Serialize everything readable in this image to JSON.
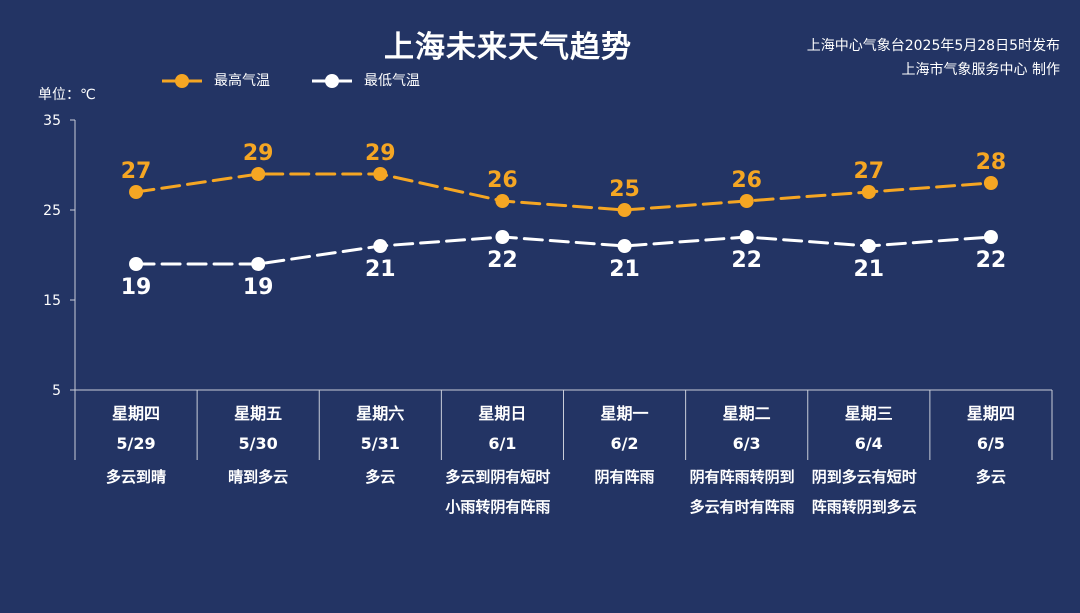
{
  "title": "上海未来天气趋势",
  "publisher": {
    "line1": "上海中心气象台2025年5月28日5时发布",
    "line2": "上海市气象服务中心 制作"
  },
  "unit_label": "单位：℃",
  "colors": {
    "background": "#233464",
    "high": "#F5A623",
    "low": "#FFFFFF",
    "axis": "#C8CCD8"
  },
  "legend": [
    {
      "label": "最高气温",
      "color": "#F5A623"
    },
    {
      "label": "最低气温",
      "color": "#FFFFFF"
    }
  ],
  "days": [
    {
      "weekday": "星期四",
      "date": "5/29",
      "condition": "多云到晴"
    },
    {
      "weekday": "星期五",
      "date": "5/30",
      "condition": "晴到多云"
    },
    {
      "weekday": "星期六",
      "date": "5/31",
      "condition": "多云"
    },
    {
      "weekday": "星期日",
      "date": "6/1",
      "condition": "多云到阴有短时小雨转阴有阵雨"
    },
    {
      "weekday": "星期一",
      "date": "6/2",
      "condition": "阴有阵雨"
    },
    {
      "weekday": "星期二",
      "date": "6/3",
      "condition": "阴有阵雨转阴到多云有时有阵雨"
    },
    {
      "weekday": "星期三",
      "date": "6/4",
      "condition": "阴到多云有短时阵雨转阴到多云"
    },
    {
      "weekday": "星期四",
      "date": "6/5",
      "condition": "多云"
    }
  ],
  "chart_data": {
    "type": "line",
    "title": "上海未来天气趋势",
    "ylabel": "单位：℃",
    "ylim": [
      5,
      35
    ],
    "yticks": [
      5,
      15,
      25,
      35
    ],
    "categories": [
      "5/29",
      "5/30",
      "5/31",
      "6/1",
      "6/2",
      "6/3",
      "6/4",
      "6/5"
    ],
    "series": [
      {
        "name": "最高气温",
        "values": [
          27,
          29,
          29,
          26,
          25,
          26,
          27,
          28
        ],
        "color": "#F5A623",
        "label_position": "above"
      },
      {
        "name": "最低气温",
        "values": [
          19,
          19,
          21,
          22,
          21,
          22,
          21,
          22
        ],
        "color": "#FFFFFF",
        "label_position": "below"
      }
    ],
    "grid": false,
    "legend_position": "top-left",
    "line_style": "dashed"
  }
}
